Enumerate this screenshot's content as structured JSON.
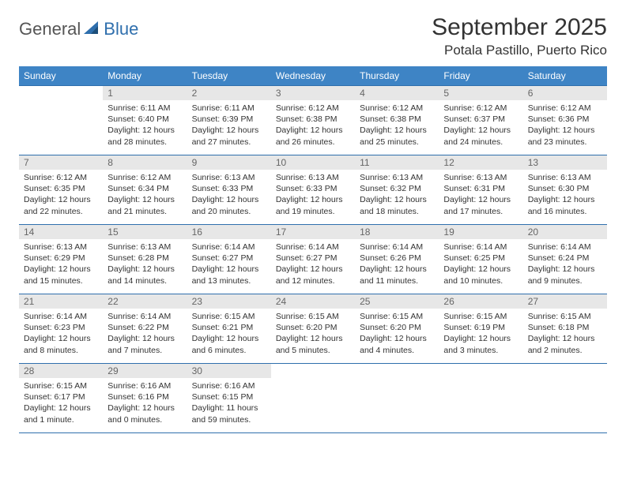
{
  "brand": {
    "general": "General",
    "blue": "Blue"
  },
  "title": "September 2025",
  "location": "Potala Pastillo, Puerto Rico",
  "colors": {
    "header_bg": "#3e84c5",
    "border": "#2f6fad",
    "daynum_bg": "#e7e7e7",
    "text": "#333333"
  },
  "weekdays": [
    "Sunday",
    "Monday",
    "Tuesday",
    "Wednesday",
    "Thursday",
    "Friday",
    "Saturday"
  ],
  "weeks": [
    [
      null,
      {
        "n": "1",
        "sr": "6:11 AM",
        "ss": "6:40 PM",
        "dl": "12 hours and 28 minutes."
      },
      {
        "n": "2",
        "sr": "6:11 AM",
        "ss": "6:39 PM",
        "dl": "12 hours and 27 minutes."
      },
      {
        "n": "3",
        "sr": "6:12 AM",
        "ss": "6:38 PM",
        "dl": "12 hours and 26 minutes."
      },
      {
        "n": "4",
        "sr": "6:12 AM",
        "ss": "6:38 PM",
        "dl": "12 hours and 25 minutes."
      },
      {
        "n": "5",
        "sr": "6:12 AM",
        "ss": "6:37 PM",
        "dl": "12 hours and 24 minutes."
      },
      {
        "n": "6",
        "sr": "6:12 AM",
        "ss": "6:36 PM",
        "dl": "12 hours and 23 minutes."
      }
    ],
    [
      {
        "n": "7",
        "sr": "6:12 AM",
        "ss": "6:35 PM",
        "dl": "12 hours and 22 minutes."
      },
      {
        "n": "8",
        "sr": "6:12 AM",
        "ss": "6:34 PM",
        "dl": "12 hours and 21 minutes."
      },
      {
        "n": "9",
        "sr": "6:13 AM",
        "ss": "6:33 PM",
        "dl": "12 hours and 20 minutes."
      },
      {
        "n": "10",
        "sr": "6:13 AM",
        "ss": "6:33 PM",
        "dl": "12 hours and 19 minutes."
      },
      {
        "n": "11",
        "sr": "6:13 AM",
        "ss": "6:32 PM",
        "dl": "12 hours and 18 minutes."
      },
      {
        "n": "12",
        "sr": "6:13 AM",
        "ss": "6:31 PM",
        "dl": "12 hours and 17 minutes."
      },
      {
        "n": "13",
        "sr": "6:13 AM",
        "ss": "6:30 PM",
        "dl": "12 hours and 16 minutes."
      }
    ],
    [
      {
        "n": "14",
        "sr": "6:13 AM",
        "ss": "6:29 PM",
        "dl": "12 hours and 15 minutes."
      },
      {
        "n": "15",
        "sr": "6:13 AM",
        "ss": "6:28 PM",
        "dl": "12 hours and 14 minutes."
      },
      {
        "n": "16",
        "sr": "6:14 AM",
        "ss": "6:27 PM",
        "dl": "12 hours and 13 minutes."
      },
      {
        "n": "17",
        "sr": "6:14 AM",
        "ss": "6:27 PM",
        "dl": "12 hours and 12 minutes."
      },
      {
        "n": "18",
        "sr": "6:14 AM",
        "ss": "6:26 PM",
        "dl": "12 hours and 11 minutes."
      },
      {
        "n": "19",
        "sr": "6:14 AM",
        "ss": "6:25 PM",
        "dl": "12 hours and 10 minutes."
      },
      {
        "n": "20",
        "sr": "6:14 AM",
        "ss": "6:24 PM",
        "dl": "12 hours and 9 minutes."
      }
    ],
    [
      {
        "n": "21",
        "sr": "6:14 AM",
        "ss": "6:23 PM",
        "dl": "12 hours and 8 minutes."
      },
      {
        "n": "22",
        "sr": "6:14 AM",
        "ss": "6:22 PM",
        "dl": "12 hours and 7 minutes."
      },
      {
        "n": "23",
        "sr": "6:15 AM",
        "ss": "6:21 PM",
        "dl": "12 hours and 6 minutes."
      },
      {
        "n": "24",
        "sr": "6:15 AM",
        "ss": "6:20 PM",
        "dl": "12 hours and 5 minutes."
      },
      {
        "n": "25",
        "sr": "6:15 AM",
        "ss": "6:20 PM",
        "dl": "12 hours and 4 minutes."
      },
      {
        "n": "26",
        "sr": "6:15 AM",
        "ss": "6:19 PM",
        "dl": "12 hours and 3 minutes."
      },
      {
        "n": "27",
        "sr": "6:15 AM",
        "ss": "6:18 PM",
        "dl": "12 hours and 2 minutes."
      }
    ],
    [
      {
        "n": "28",
        "sr": "6:15 AM",
        "ss": "6:17 PM",
        "dl": "12 hours and 1 minute."
      },
      {
        "n": "29",
        "sr": "6:16 AM",
        "ss": "6:16 PM",
        "dl": "12 hours and 0 minutes."
      },
      {
        "n": "30",
        "sr": "6:16 AM",
        "ss": "6:15 PM",
        "dl": "11 hours and 59 minutes."
      },
      null,
      null,
      null,
      null
    ]
  ],
  "labels": {
    "sunrise": "Sunrise:",
    "sunset": "Sunset:",
    "daylight": "Daylight:"
  }
}
